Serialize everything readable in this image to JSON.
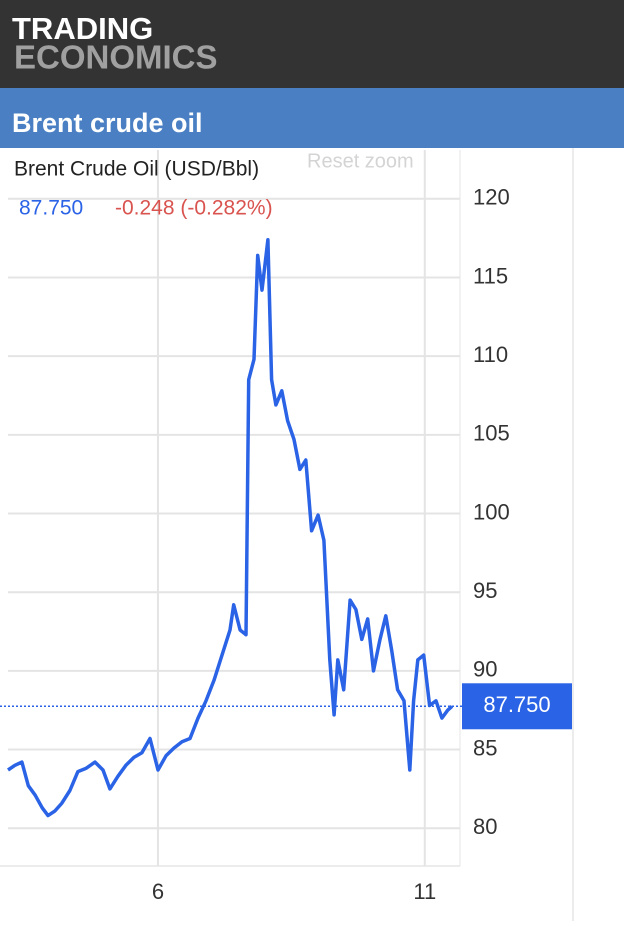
{
  "header": {
    "brand_top": "TRADING",
    "brand_bottom": "ECONOMICS"
  },
  "page_title": "Brent crude oil",
  "chart_data": {
    "type": "line",
    "title": "Brent Crude Oil (USD/Bbl)",
    "last": {
      "value": 87.75,
      "label": "87.750"
    },
    "change": "-0.248 (-0.282%)",
    "reset_button": "Reset zoom",
    "color": "#2b63e6",
    "grid": true,
    "x": [
      3.19,
      3.32,
      3.45,
      3.57,
      3.7,
      3.83,
      3.94,
      4.07,
      4.2,
      4.35,
      4.5,
      4.65,
      4.82,
      4.97,
      5.1,
      5.25,
      5.4,
      5.55,
      5.7,
      5.85,
      6.0,
      6.15,
      6.3,
      6.45,
      6.6,
      6.75,
      6.9,
      7.05,
      7.2,
      7.35,
      7.42,
      7.54,
      7.65,
      7.7,
      7.8,
      7.87,
      7.95,
      8.06,
      8.13,
      8.21,
      8.32,
      8.43,
      8.55,
      8.66,
      8.77,
      8.88,
      9.0,
      9.11,
      9.22,
      9.3,
      9.37,
      9.48,
      9.6,
      9.71,
      9.82,
      9.93,
      10.04,
      10.16,
      10.27,
      10.38,
      10.49,
      10.61,
      10.72,
      10.79,
      10.87,
      10.98,
      11.09,
      11.21,
      11.32,
      11.43,
      11.51
    ],
    "values": [
      83.7,
      84.0,
      84.2,
      82.7,
      82.1,
      81.3,
      80.8,
      81.1,
      81.6,
      82.4,
      83.6,
      83.8,
      84.2,
      83.7,
      82.5,
      83.3,
      84.0,
      84.5,
      84.8,
      85.7,
      83.7,
      84.6,
      85.1,
      85.5,
      85.7,
      87.0,
      88.1,
      89.4,
      91.0,
      92.6,
      94.2,
      92.6,
      92.3,
      108.5,
      109.8,
      116.4,
      114.2,
      117.4,
      108.5,
      106.9,
      107.8,
      105.9,
      104.7,
      102.8,
      103.4,
      98.9,
      99.9,
      98.3,
      90.7,
      87.2,
      90.7,
      88.8,
      94.5,
      93.9,
      92.0,
      93.3,
      90.0,
      92.0,
      93.5,
      91.3,
      88.8,
      88.1,
      83.7,
      88.1,
      90.7,
      91.0,
      87.8,
      88.1,
      87.0,
      87.5,
      87.75
    ],
    "xlim": [
      3.04,
      11.66
    ],
    "xticks": [
      6,
      11
    ],
    "ylim": [
      77.6,
      123.1
    ],
    "yticks": [
      80,
      85,
      90,
      95,
      100,
      105,
      110,
      115,
      120
    ]
  }
}
